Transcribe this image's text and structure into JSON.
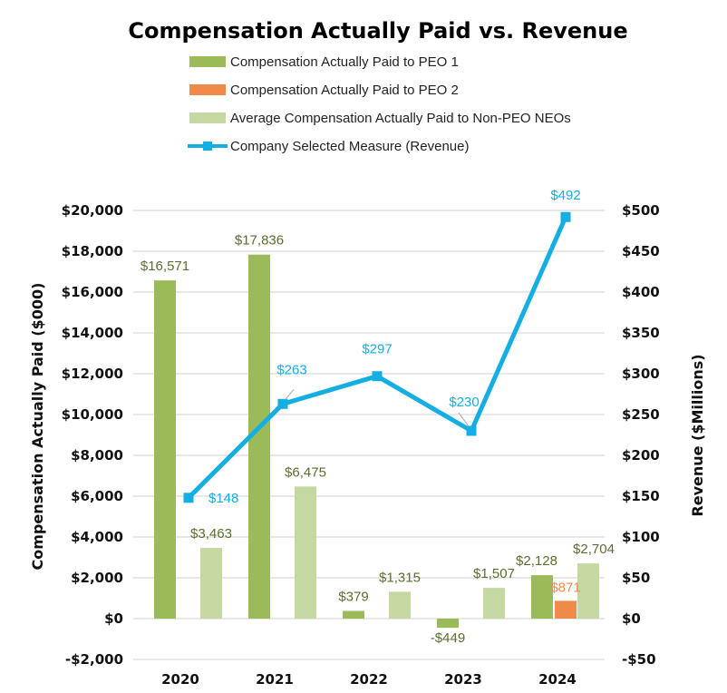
{
  "colors": {
    "peo1": "#9bbb59",
    "peo2": "#f08a4b",
    "nonpeo": "#c6d8a2",
    "revenue": "#14aee3",
    "peo1_label": "#5a6e2e",
    "grid": "#d9d9d9"
  },
  "chart_data": {
    "type": "bar+line",
    "title": "Compensation Actually Paid vs. Revenue",
    "categories": [
      "2020",
      "2021",
      "2022",
      "2023",
      "2024"
    ],
    "ylabel": "Compensation Actually Paid ($000)",
    "y2label": "Revenue ($Millions)",
    "ylim": [
      -2000,
      20000
    ],
    "y_ticks": [
      -2000,
      0,
      2000,
      4000,
      6000,
      8000,
      10000,
      12000,
      14000,
      16000,
      18000,
      20000
    ],
    "y_tick_labels": [
      "-$2,000",
      "$0",
      "$2,000",
      "$4,000",
      "$6,000",
      "$8,000",
      "$10,000",
      "$12,000",
      "$14,000",
      "$16,000",
      "$18,000",
      "$20,000"
    ],
    "y2lim": [
      -50,
      500
    ],
    "y2_ticks": [
      -50,
      0,
      50,
      100,
      150,
      200,
      250,
      300,
      350,
      400,
      450,
      500
    ],
    "y2_tick_labels": [
      "-$50",
      "$0",
      "$50",
      "$100",
      "$150",
      "$200",
      "$250",
      "$300",
      "$350",
      "$400",
      "$450",
      "$500"
    ],
    "grid": true,
    "series": [
      {
        "name": "Compensation Actually Paid to PEO 1",
        "kind": "bar",
        "axis": "left",
        "color_key": "peo1",
        "label_color_key": "peo1_label",
        "values": [
          16571,
          17836,
          379,
          -449,
          2128
        ],
        "labels": [
          "$16,571",
          "$17,836",
          "$379",
          "-$449",
          "$2,128"
        ]
      },
      {
        "name": "Compensation Actually Paid to PEO 2",
        "kind": "bar",
        "axis": "left",
        "color_key": "peo2",
        "label_color_key": "peo2",
        "values": [
          null,
          null,
          null,
          null,
          871
        ],
        "labels": [
          null,
          null,
          null,
          null,
          "$871"
        ]
      },
      {
        "name": "Average Compensation Actually Paid to Non-PEO NEOs",
        "kind": "bar",
        "axis": "left",
        "color_key": "nonpeo",
        "label_color_key": "peo1_label",
        "values": [
          3463,
          6475,
          1315,
          1507,
          2704
        ],
        "labels": [
          "$3,463",
          "$6,475",
          "$1,315",
          "$1,507",
          "$2,704"
        ]
      },
      {
        "name": "Company Selected Measure (Revenue)",
        "kind": "line",
        "axis": "right",
        "color_key": "revenue",
        "label_color_key": "revenue",
        "values": [
          148,
          263,
          297,
          230,
          492
        ],
        "labels": [
          "$148",
          "$263",
          "$297",
          "$230",
          "$492"
        ]
      }
    ]
  }
}
